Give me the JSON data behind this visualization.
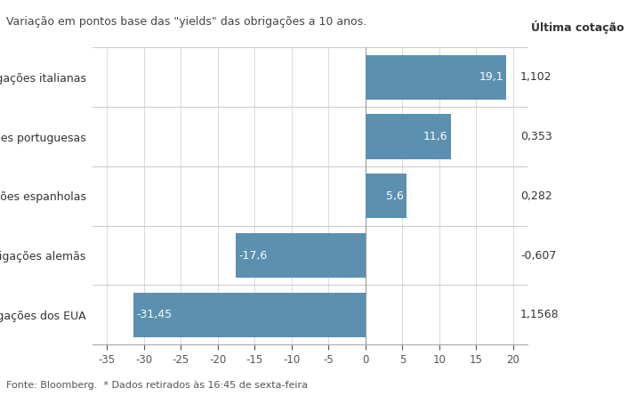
{
  "categories": [
    "Obrigações dos EUA",
    "Obrigações alemãs",
    "Obrigações espanholas",
    "Obrigações portuguesas",
    "Obrigações italianas"
  ],
  "values": [
    -31.45,
    -17.6,
    5.6,
    11.6,
    19.1
  ],
  "bar_labels": [
    "-31,45",
    "-17,6",
    "5,6",
    "11,6",
    "19,1"
  ],
  "last_quotes": [
    "1,1568",
    "-0,607",
    "0,282",
    "0,353",
    "1,102"
  ],
  "bar_color": "#5b90b0",
  "bar_label_color_inside": "#ffffff",
  "bar_label_color_outside": "#333333",
  "subtitle": "Variação em pontos base das \"yields\" das obrigações a 10 anos.",
  "ultima_cotacao_label": "Última cotação",
  "footer": "Fonte: Bloomberg.  * Dados retirados às 16:45 de sexta-feira",
  "xlim": [
    -37,
    22
  ],
  "xticks": [
    -35,
    -30,
    -25,
    -20,
    -15,
    -10,
    -5,
    0,
    5,
    10,
    15,
    20
  ],
  "background_color": "#ffffff",
  "grid_color": "#cccccc",
  "separator_color": "#cccccc",
  "subtitle_fontsize": 9,
  "label_fontsize": 9,
  "tick_fontsize": 8.5,
  "footer_fontsize": 8,
  "ultima_fontsize": 9,
  "quote_fontsize": 9,
  "bar_label_fontsize": 9
}
